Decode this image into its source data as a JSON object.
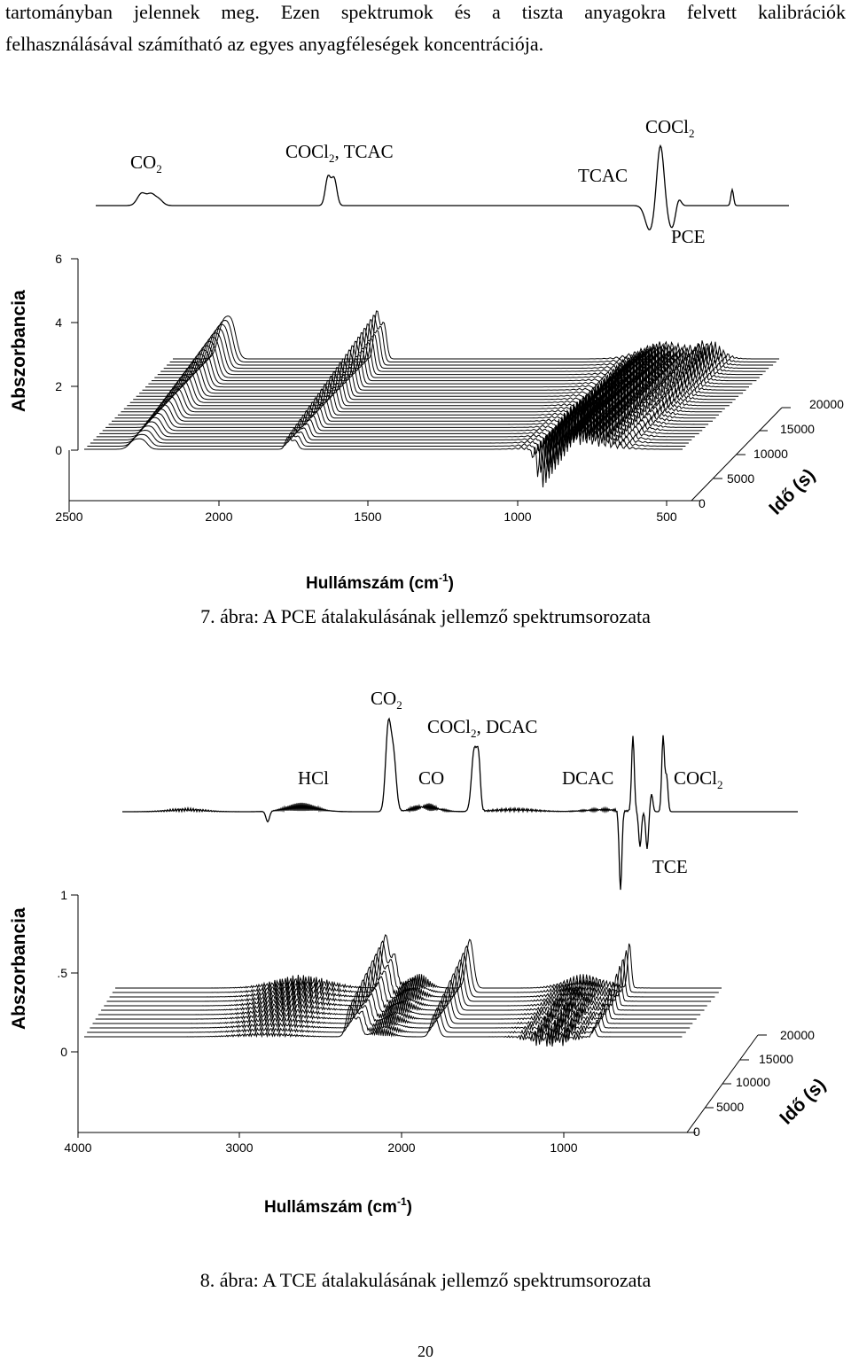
{
  "paragraph": {
    "line1": "tartományban jelennek meg. Ezen spektrumok és a tiszta anyagokra felvett kalibrációk",
    "line2": "felhasználásával számítható az egyes anyagféleségek koncentrációja."
  },
  "figure7": {
    "caption": "7. ábra: A PCE átalakulásának jellemző spektrumsorozata",
    "labels": {
      "co2": "CO",
      "cocl2_tcac": "COCl",
      "cocl2_tcac_tail": ", TCAC",
      "tcac": "TCAC",
      "cocl2": "COCl",
      "pce": "PCE",
      "sub2": "2"
    },
    "chart_data": {
      "type": "line",
      "ylabel": "Abszorbancia",
      "xlabel": "Hullámszám (cm",
      "xlabel_sup": "-1",
      "xlabel_tail": ")",
      "zlabel": "Idő (s)",
      "x_ticks": [
        "2500",
        "2000",
        "1500",
        "1000",
        "500"
      ],
      "y_ticks": [
        "6",
        "4",
        "2",
        "0"
      ],
      "z_ticks": [
        "0",
        "5000",
        "10000",
        "15000",
        "20000"
      ],
      "x_range": [
        2500,
        400
      ],
      "y_range": [
        0,
        6
      ],
      "z_range": [
        0,
        20000
      ],
      "series_count": 30
    }
  },
  "figure8": {
    "caption": "8. ábra: A TCE átalakulásának jellemző spektrumsorozata",
    "labels": {
      "co2": "CO",
      "cocl2_dcac": "COCl",
      "cocl2_dcac_tail": ", DCAC",
      "hcl": "HCl",
      "co": "CO",
      "dcac": "DCAC",
      "cocl2": "COCl",
      "tce": "TCE",
      "sub2": "2"
    },
    "chart_data": {
      "type": "line",
      "ylabel": "Abszorbancia",
      "xlabel": "Hullámszám (cm",
      "xlabel_sup": "-1",
      "xlabel_tail": ")",
      "zlabel": "Idő (s)",
      "x_ticks": [
        "4000",
        "3000",
        "2000",
        "1000"
      ],
      "y_ticks": [
        "1",
        ".5",
        "0"
      ],
      "z_ticks": [
        "0",
        "5000",
        "10000",
        "15000",
        "20000"
      ],
      "x_range": [
        4000,
        400
      ],
      "y_range": [
        0,
        1
      ],
      "z_range": [
        0,
        20000
      ],
      "series_count": 12
    }
  },
  "page_number": "20"
}
